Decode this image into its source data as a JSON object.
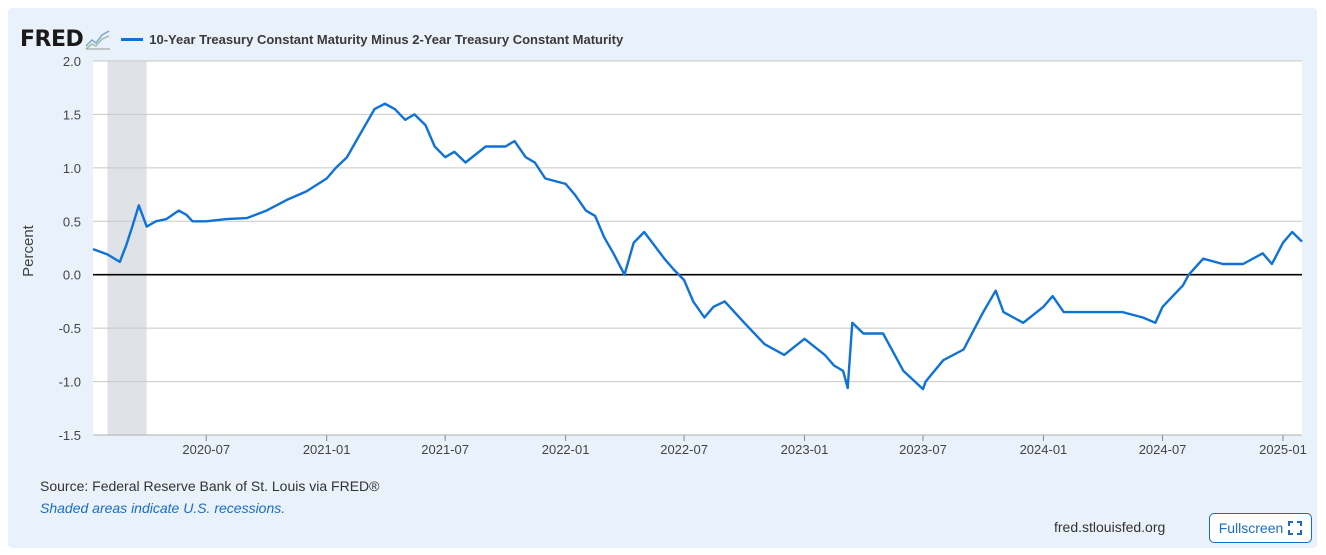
{
  "logo": {
    "text": "FRED"
  },
  "colors": {
    "series": "#0e72d6",
    "background": "#e9f1fa",
    "plot": "#ffffff",
    "recession": "#dfe3e8",
    "grid": "#c8c8c8",
    "zero_line": "#000000"
  },
  "footer": {
    "source": "Source: Federal Reserve Bank of St. Louis via FRED®",
    "note": "Shaded areas indicate U.S. recessions.",
    "site": "fred.stlouisfed.org",
    "fullscreen_label": "Fullscreen"
  },
  "chart_data": {
    "type": "line",
    "title": "",
    "legend": [
      "10-Year Treasury Constant Maturity Minus 2-Year Treasury Constant Maturity"
    ],
    "xlabel": "",
    "ylabel": "Percent",
    "ylim": [
      -1.5,
      2.0
    ],
    "xlim": [
      "2020-01-10",
      "2025-01-30"
    ],
    "yticks": [
      -1.5,
      -1.0,
      -0.5,
      0.0,
      0.5,
      1.0,
      1.5,
      2.0
    ],
    "ytick_labels": [
      "-1.5",
      "-1.0",
      "-0.5",
      "0.0",
      "0.5",
      "1.0",
      "1.5",
      "2.0"
    ],
    "xticks": [
      "2020-07",
      "2021-01",
      "2021-07",
      "2022-01",
      "2022-07",
      "2023-01",
      "2023-07",
      "2024-01",
      "2024-07",
      "2025-01"
    ],
    "grid": true,
    "reference_line": 0.0,
    "recessions": [
      {
        "start": "2020-02",
        "end": "2020-04"
      }
    ],
    "series": [
      {
        "name": "10-Year Treasury Constant Maturity Minus 2-Year Treasury Constant Maturity",
        "x": [
          "2020-01-10",
          "2020-02-01",
          "2020-02-20",
          "2020-03-01",
          "2020-03-10",
          "2020-03-20",
          "2020-04-01",
          "2020-04-15",
          "2020-05-01",
          "2020-05-20",
          "2020-06-01",
          "2020-06-10",
          "2020-07-01",
          "2020-08-01",
          "2020-09-01",
          "2020-10-01",
          "2020-11-01",
          "2020-12-01",
          "2021-01-01",
          "2021-01-15",
          "2021-02-01",
          "2021-02-15",
          "2021-03-01",
          "2021-03-15",
          "2021-03-31",
          "2021-04-15",
          "2021-05-01",
          "2021-05-15",
          "2021-06-01",
          "2021-06-15",
          "2021-07-01",
          "2021-07-15",
          "2021-08-01",
          "2021-09-01",
          "2021-10-01",
          "2021-10-15",
          "2021-11-01",
          "2021-11-15",
          "2021-12-01",
          "2022-01-01",
          "2022-01-15",
          "2022-02-01",
          "2022-02-15",
          "2022-03-01",
          "2022-03-15",
          "2022-04-01",
          "2022-04-15",
          "2022-05-01",
          "2022-06-01",
          "2022-06-15",
          "2022-07-01",
          "2022-07-15",
          "2022-08-01",
          "2022-08-15",
          "2022-09-01",
          "2022-10-01",
          "2022-11-01",
          "2022-12-01",
          "2023-01-01",
          "2023-02-01",
          "2023-02-15",
          "2023-03-01",
          "2023-03-08",
          "2023-03-15",
          "2023-04-01",
          "2023-05-01",
          "2023-06-01",
          "2023-07-01",
          "2023-07-05",
          "2023-08-01",
          "2023-09-01",
          "2023-10-01",
          "2023-10-20",
          "2023-11-01",
          "2023-12-01",
          "2024-01-01",
          "2024-01-15",
          "2024-02-01",
          "2024-03-01",
          "2024-04-01",
          "2024-05-01",
          "2024-06-01",
          "2024-06-20",
          "2024-07-01",
          "2024-08-01",
          "2024-08-10",
          "2024-09-01",
          "2024-10-01",
          "2024-11-01",
          "2024-12-01",
          "2024-12-15",
          "2025-01-01",
          "2025-01-15",
          "2025-01-30"
        ],
        "values": [
          0.24,
          0.19,
          0.12,
          0.28,
          0.45,
          0.65,
          0.45,
          0.5,
          0.52,
          0.6,
          0.56,
          0.5,
          0.5,
          0.52,
          0.53,
          0.6,
          0.7,
          0.78,
          0.9,
          1.0,
          1.1,
          1.25,
          1.4,
          1.55,
          1.6,
          1.55,
          1.45,
          1.5,
          1.4,
          1.2,
          1.1,
          1.15,
          1.05,
          1.2,
          1.2,
          1.25,
          1.1,
          1.05,
          0.9,
          0.85,
          0.75,
          0.6,
          0.55,
          0.35,
          0.2,
          0.0,
          0.3,
          0.4,
          0.15,
          0.05,
          -0.05,
          -0.25,
          -0.4,
          -0.3,
          -0.25,
          -0.45,
          -0.65,
          -0.75,
          -0.6,
          -0.75,
          -0.85,
          -0.9,
          -1.06,
          -0.45,
          -0.55,
          -0.55,
          -0.9,
          -1.07,
          -1.0,
          -0.8,
          -0.7,
          -0.35,
          -0.15,
          -0.35,
          -0.45,
          -0.3,
          -0.2,
          -0.35,
          -0.35,
          -0.35,
          -0.35,
          -0.4,
          -0.45,
          -0.3,
          -0.1,
          0.0,
          0.15,
          0.1,
          0.1,
          0.2,
          0.1,
          0.3,
          0.4,
          0.31
        ]
      }
    ]
  }
}
